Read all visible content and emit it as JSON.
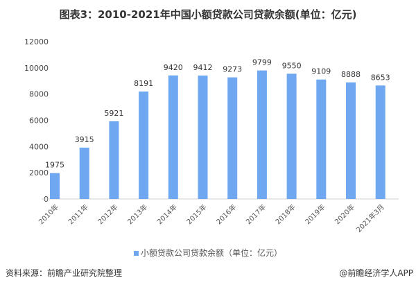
{
  "chart_data": {
    "type": "bar",
    "title": "图表3：2010-2021年中国小额贷款公司贷款余额(单位：亿元)",
    "categories": [
      "2010年",
      "2011年",
      "2012年",
      "2013年",
      "2014年",
      "2015年",
      "2016年",
      "2017年",
      "2018年",
      "2019年",
      "2020年",
      "2021年3月"
    ],
    "series": [
      {
        "name": "小额贷款公司贷款余额（单位：亿元）",
        "values": [
          1975,
          3915,
          5921,
          8191,
          9420,
          9412,
          9273,
          9799,
          9550,
          9109,
          8888,
          8653
        ]
      }
    ],
    "yticks": [
      0,
      2000,
      4000,
      6000,
      8000,
      10000,
      12000
    ],
    "ylim": [
      0,
      12000
    ],
    "xlabel": "",
    "ylabel": "",
    "grid": false,
    "legend": "bottom",
    "color": "#6fa8f0"
  },
  "footer": {
    "source": "资料来源：前瞻产业研究院整理",
    "credit": "@前瞻经济学人APP"
  }
}
